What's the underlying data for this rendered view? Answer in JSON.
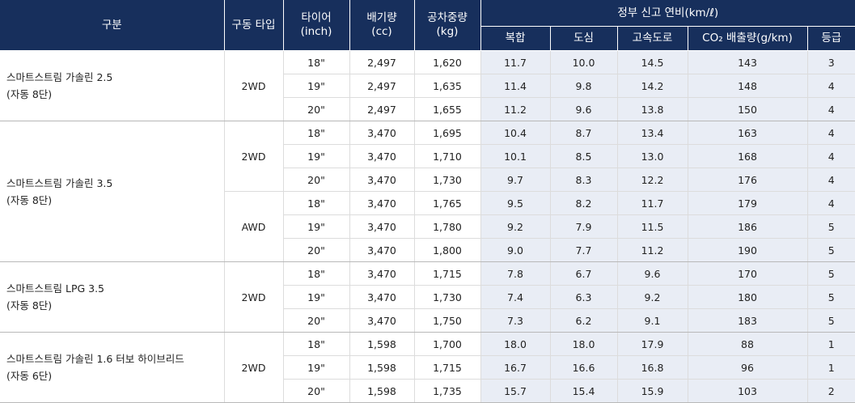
{
  "header": {
    "category": "구분",
    "drive": "구동 타입",
    "tire": "타이어\n(inch)",
    "displacement": "배기량\n(cc)",
    "weight": "공차중량\n(kg)",
    "fuel_group": "정부 신고 연비(km/ℓ)",
    "combined": "복합",
    "city": "도심",
    "highway": "고속도로",
    "co2": "CO₂ 배출량(g/km)",
    "grade": "등급"
  },
  "groups": [
    {
      "name": "스마트스트림 가솔린 2.5\n(자동 8단)",
      "drives": [
        {
          "drive": "2WD",
          "rows": [
            {
              "tire": "18\"",
              "cc": "2,497",
              "kg": "1,620",
              "comb": "11.7",
              "city": "10.0",
              "hwy": "14.5",
              "co2": "143",
              "grade": "3"
            },
            {
              "tire": "19\"",
              "cc": "2,497",
              "kg": "1,635",
              "comb": "11.4",
              "city": "9.8",
              "hwy": "14.2",
              "co2": "148",
              "grade": "4"
            },
            {
              "tire": "20\"",
              "cc": "2,497",
              "kg": "1,655",
              "comb": "11.2",
              "city": "9.6",
              "hwy": "13.8",
              "co2": "150",
              "grade": "4"
            }
          ]
        }
      ]
    },
    {
      "name": "스마트스트림 가솔린 3.5\n(자동 8단)",
      "drives": [
        {
          "drive": "2WD",
          "rows": [
            {
              "tire": "18\"",
              "cc": "3,470",
              "kg": "1,695",
              "comb": "10.4",
              "city": "8.7",
              "hwy": "13.4",
              "co2": "163",
              "grade": "4"
            },
            {
              "tire": "19\"",
              "cc": "3,470",
              "kg": "1,710",
              "comb": "10.1",
              "city": "8.5",
              "hwy": "13.0",
              "co2": "168",
              "grade": "4"
            },
            {
              "tire": "20\"",
              "cc": "3,470",
              "kg": "1,730",
              "comb": "9.7",
              "city": "8.3",
              "hwy": "12.2",
              "co2": "176",
              "grade": "4"
            }
          ]
        },
        {
          "drive": "AWD",
          "rows": [
            {
              "tire": "18\"",
              "cc": "3,470",
              "kg": "1,765",
              "comb": "9.5",
              "city": "8.2",
              "hwy": "11.7",
              "co2": "179",
              "grade": "4"
            },
            {
              "tire": "19\"",
              "cc": "3,470",
              "kg": "1,780",
              "comb": "9.2",
              "city": "7.9",
              "hwy": "11.5",
              "co2": "186",
              "grade": "5"
            },
            {
              "tire": "20\"",
              "cc": "3,470",
              "kg": "1,800",
              "comb": "9.0",
              "city": "7.7",
              "hwy": "11.2",
              "co2": "190",
              "grade": "5"
            }
          ]
        }
      ]
    },
    {
      "name": "스마트스트림 LPG 3.5\n(자동 8단)",
      "drives": [
        {
          "drive": "2WD",
          "rows": [
            {
              "tire": "18\"",
              "cc": "3,470",
              "kg": "1,715",
              "comb": "7.8",
              "city": "6.7",
              "hwy": "9.6",
              "co2": "170",
              "grade": "5"
            },
            {
              "tire": "19\"",
              "cc": "3,470",
              "kg": "1,730",
              "comb": "7.4",
              "city": "6.3",
              "hwy": "9.2",
              "co2": "180",
              "grade": "5"
            },
            {
              "tire": "20\"",
              "cc": "3,470",
              "kg": "1,750",
              "comb": "7.3",
              "city": "6.2",
              "hwy": "9.1",
              "co2": "183",
              "grade": "5"
            }
          ]
        }
      ]
    },
    {
      "name": "스마트스트림 가솔린 1.6 터보 하이브리드\n(자동 6단)",
      "drives": [
        {
          "drive": "2WD",
          "rows": [
            {
              "tire": "18\"",
              "cc": "1,598",
              "kg": "1,700",
              "comb": "18.0",
              "city": "18.0",
              "hwy": "17.9",
              "co2": "88",
              "grade": "1"
            },
            {
              "tire": "19\"",
              "cc": "1,598",
              "kg": "1,715",
              "comb": "16.7",
              "city": "16.6",
              "hwy": "16.8",
              "co2": "96",
              "grade": "1"
            },
            {
              "tire": "20\"",
              "cc": "1,598",
              "kg": "1,735",
              "comb": "15.7",
              "city": "15.4",
              "hwy": "15.9",
              "co2": "103",
              "grade": "2"
            }
          ]
        }
      ]
    }
  ]
}
